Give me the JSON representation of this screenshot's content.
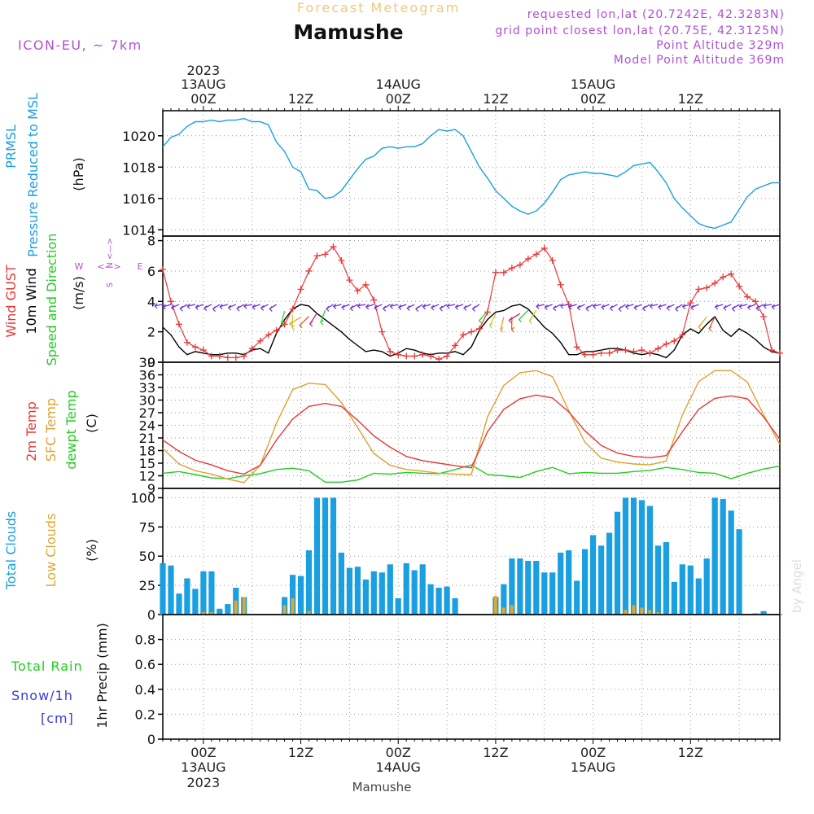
{
  "header": {
    "title": "Forecast Meteogram",
    "place": "Mamushe",
    "model": "ICON-EU,  ~ 7km",
    "requested": "requested lon,lat (20.7242E, 42.3283N)",
    "gridpoint": "grid point closest lon,lat (20.75E, 42.3125N)",
    "point_alt": "Point Altitude 329m",
    "model_alt": "Model Point Altitude 369m",
    "footer_place": "Mamushe",
    "watermark": "by Angel"
  },
  "time_axis": {
    "top_labels": [
      {
        "line1": "2023",
        "line2": "13AUG",
        "line3": "00Z",
        "hour": 0
      },
      {
        "line1": "",
        "line2": "",
        "line3": "12Z",
        "hour": 12
      },
      {
        "line1": "",
        "line2": "14AUG",
        "line3": "00Z",
        "hour": 24
      },
      {
        "line1": "",
        "line2": "",
        "line3": "12Z",
        "hour": 36
      },
      {
        "line1": "",
        "line2": "15AUG",
        "line3": "00Z",
        "hour": 48
      },
      {
        "line1": "",
        "line2": "",
        "line3": "12Z",
        "hour": 60
      }
    ],
    "bottom_labels": [
      {
        "line1": "00Z",
        "line2": "13AUG",
        "line3": "2023",
        "hour": 0
      },
      {
        "line1": "12Z",
        "line2": "",
        "line3": "",
        "hour": 12
      },
      {
        "line1": "00Z",
        "line2": "14AUG",
        "line3": "",
        "hour": 24
      },
      {
        "line1": "12Z",
        "line2": "",
        "line3": "",
        "hour": 36
      },
      {
        "line1": "00Z",
        "line2": "15AUG",
        "line3": "",
        "hour": 48
      },
      {
        "line1": "12Z",
        "line2": "",
        "line3": "",
        "hour": 60
      }
    ],
    "start_hour": -5,
    "end_hour": 71
  },
  "colors": {
    "pressure": "#1a9fe0",
    "gust": "#e83838",
    "wind": "#000000",
    "temp": "#e83838",
    "sfc": "#e0a030",
    "dewpt": "#22cc22",
    "clouds_total": "#1a9fe0",
    "clouds_low": "#e0a830",
    "rain": "#22cc22",
    "snow": "#3a3ae0",
    "meta": "#b050d0",
    "title": "#f0c880"
  },
  "chart_data": [
    {
      "type": "line",
      "name": "pressure",
      "ylabel_lines": [
        "PRMSL",
        "Pressure Reduced to MSL"
      ],
      "unit": "(hPa)",
      "ylim": [
        1013.6,
        1021.6
      ],
      "yticks": [
        1014,
        1016,
        1018,
        1020
      ],
      "x": [
        -5,
        -4,
        -3,
        -2,
        -1,
        0,
        1,
        2,
        3,
        4,
        5,
        6,
        7,
        8,
        9,
        10,
        11,
        12,
        13,
        14,
        15,
        16,
        17,
        18,
        19,
        20,
        21,
        22,
        23,
        24,
        25,
        26,
        27,
        28,
        29,
        30,
        31,
        32,
        33,
        34,
        35,
        36,
        37,
        38,
        39,
        40,
        41,
        42,
        43,
        44,
        45,
        46,
        47,
        48,
        49,
        50,
        51,
        52,
        53,
        54,
        55,
        56,
        57,
        58,
        59,
        60,
        61,
        62,
        63,
        64,
        65,
        66,
        67,
        68,
        69,
        70,
        71
      ],
      "series": [
        {
          "name": "PRMSL",
          "values": [
            1019.3,
            1019.9,
            1020.1,
            1020.6,
            1020.9,
            1020.9,
            1021.0,
            1020.9,
            1021.0,
            1021.0,
            1021.1,
            1020.9,
            1020.9,
            1020.7,
            1019.6,
            1019.0,
            1018.0,
            1017.7,
            1016.6,
            1016.5,
            1016.0,
            1016.1,
            1016.5,
            1017.2,
            1017.9,
            1018.5,
            1018.7,
            1019.2,
            1019.3,
            1019.2,
            1019.3,
            1019.3,
            1019.5,
            1020.0,
            1020.4,
            1020.3,
            1020.4,
            1020.0,
            1019.0,
            1018.0,
            1017.3,
            1016.5,
            1016.0,
            1015.5,
            1015.2,
            1015.0,
            1015.2,
            1015.7,
            1016.4,
            1017.2,
            1017.5,
            1017.6,
            1017.7,
            1017.6,
            1017.6,
            1017.5,
            1017.4,
            1017.7,
            1018.1,
            1018.2,
            1018.3,
            1017.7,
            1017.0,
            1016.0,
            1015.4,
            1014.9,
            1014.4,
            1014.2,
            1014.1,
            1014.3,
            1014.5,
            1015.3,
            1016.1,
            1016.6,
            1016.8,
            1017.0,
            1017.0
          ]
        }
      ]
    },
    {
      "type": "line",
      "name": "wind",
      "ylabel_lines": [
        "Wind GUST",
        "10m Wind",
        "Speed and Direction"
      ],
      "unit": "(m/s)",
      "compass": {
        "n": "N",
        "s": "S",
        "w": "W",
        "e": "E"
      },
      "ylim": [
        0,
        8.3
      ],
      "yticks": [
        0,
        2,
        4,
        6,
        8
      ],
      "x": [
        -5,
        -4,
        -3,
        -2,
        -1,
        0,
        1,
        2,
        3,
        4,
        5,
        6,
        7,
        8,
        9,
        10,
        11,
        12,
        13,
        14,
        15,
        16,
        17,
        18,
        19,
        20,
        21,
        22,
        23,
        24,
        25,
        26,
        27,
        28,
        29,
        30,
        31,
        32,
        33,
        34,
        35,
        36,
        37,
        38,
        39,
        40,
        41,
        42,
        43,
        44,
        45,
        46,
        47,
        48,
        49,
        50,
        51,
        52,
        53,
        54,
        55,
        56,
        57,
        58,
        59,
        60,
        61,
        62,
        63,
        64,
        65,
        66,
        67,
        68,
        69,
        70,
        71
      ],
      "series": [
        {
          "name": "Wind GUST",
          "values": [
            6.1,
            4.0,
            2.5,
            1.3,
            1.0,
            0.8,
            0.4,
            0.4,
            0.3,
            0.3,
            0.4,
            0.9,
            1.4,
            1.8,
            2.1,
            2.5,
            3.5,
            4.8,
            6.0,
            7.0,
            7.1,
            7.6,
            6.7,
            5.4,
            4.7,
            5.1,
            4.1,
            2.0,
            0.7,
            0.5,
            0.4,
            0.4,
            0.5,
            0.4,
            0.2,
            0.4,
            1.1,
            1.8,
            2.0,
            2.2,
            3.3,
            5.9,
            5.9,
            6.2,
            6.4,
            6.8,
            7.1,
            7.5,
            6.7,
            5.1,
            3.8,
            1.0,
            0.5,
            0.5,
            0.6,
            0.6,
            0.8,
            0.8,
            0.7,
            0.8,
            0.6,
            0.9,
            1.2,
            1.4,
            1.8,
            3.9,
            4.8,
            4.9,
            5.2,
            5.6,
            5.8,
            5.0,
            4.3,
            4.0,
            3.0,
            0.8,
            0.6
          ]
        },
        {
          "name": "10m Wind",
          "values": [
            2.3,
            1.8,
            1.0,
            0.5,
            0.7,
            0.6,
            0.5,
            0.5,
            0.6,
            0.6,
            0.5,
            0.8,
            0.9,
            0.6,
            1.9,
            2.8,
            3.5,
            3.8,
            3.7,
            3.2,
            2.8,
            2.4,
            2.0,
            1.5,
            1.1,
            0.7,
            0.8,
            0.7,
            0.4,
            0.6,
            0.9,
            0.8,
            0.6,
            0.5,
            0.6,
            0.6,
            0.7,
            0.5,
            1.0,
            2.1,
            2.8,
            3.3,
            3.4,
            3.7,
            3.8,
            3.5,
            2.9,
            2.3,
            1.9,
            1.3,
            0.5,
            0.5,
            0.7,
            0.7,
            0.8,
            0.9,
            0.9,
            0.8,
            0.6,
            0.5,
            0.6,
            0.5,
            0.3,
            0.8,
            1.8,
            2.2,
            1.9,
            2.5,
            3.0,
            2.1,
            1.7,
            2.2,
            1.9,
            1.5,
            1.0,
            0.7,
            0.6
          ]
        }
      ]
    },
    {
      "type": "line",
      "name": "temperature",
      "ylabel_lines": [
        "2m Temp",
        "SFC Temp",
        "dewpt Temp"
      ],
      "unit": "(C)",
      "ylim": [
        9,
        39
      ],
      "yticks": [
        9,
        12,
        15,
        18,
        21,
        24,
        27,
        30,
        33,
        36,
        39
      ],
      "x": [
        -5,
        -3,
        -1,
        1,
        3,
        5,
        7,
        9,
        11,
        13,
        15,
        17,
        19,
        21,
        23,
        25,
        27,
        29,
        31,
        33,
        35,
        37,
        39,
        41,
        43,
        45,
        47,
        49,
        51,
        53,
        55,
        57,
        59,
        61,
        63,
        65,
        67,
        69,
        71
      ],
      "series": [
        {
          "name": "2m Temp",
          "values": [
            20.5,
            17.8,
            15.7,
            14.6,
            13.2,
            12.4,
            14.5,
            20.5,
            25.5,
            28.5,
            29.2,
            28.5,
            25.2,
            21.5,
            18.8,
            16.6,
            15.6,
            15.0,
            14.4,
            13.9,
            22.5,
            27.8,
            30.3,
            31.2,
            30.5,
            27.2,
            22.7,
            19.2,
            17.4,
            16.6,
            16.3,
            16.8,
            22.5,
            27.8,
            30.4,
            31.0,
            30.3,
            26.0,
            20.7
          ]
        },
        {
          "name": "SFC Temp",
          "values": [
            18.5,
            14.8,
            13.2,
            12.4,
            11.2,
            10.4,
            14.5,
            24.5,
            32.5,
            34.0,
            33.7,
            29.4,
            23.5,
            17.3,
            14.5,
            13.5,
            13.1,
            12.6,
            12.4,
            12.3,
            26.0,
            33.5,
            36.5,
            37.0,
            35.6,
            27.5,
            20.0,
            16.2,
            15.3,
            14.8,
            14.6,
            15.5,
            26.5,
            34.4,
            37.0,
            37.0,
            34.3,
            26.5,
            19.5
          ]
        },
        {
          "name": "dewpt Temp",
          "values": [
            12.6,
            13.0,
            12.3,
            11.5,
            11.3,
            12.0,
            12.5,
            13.5,
            13.8,
            13.2,
            10.5,
            10.5,
            11.0,
            12.6,
            12.4,
            12.8,
            12.6,
            12.5,
            13.5,
            14.6,
            12.3,
            12.0,
            11.6,
            13.0,
            14.0,
            12.5,
            12.8,
            12.6,
            12.6,
            13.0,
            13.3,
            14.0,
            13.5,
            12.8,
            12.6,
            11.3,
            12.6,
            13.6,
            14.3
          ]
        }
      ]
    },
    {
      "type": "bar",
      "name": "clouds",
      "ylabel_lines": [
        "Total Clouds",
        "Low Clouds"
      ],
      "unit": "(%)",
      "ylim": [
        0,
        108
      ],
      "yticks": [
        0,
        25,
        50,
        75,
        100
      ],
      "x": [
        -5,
        -4,
        -3,
        -2,
        -1,
        0,
        1,
        2,
        3,
        4,
        5,
        6,
        7,
        8,
        9,
        10,
        11,
        12,
        13,
        14,
        15,
        16,
        17,
        18,
        19,
        20,
        21,
        22,
        23,
        24,
        25,
        26,
        27,
        28,
        29,
        30,
        31,
        32,
        33,
        34,
        35,
        36,
        37,
        38,
        39,
        40,
        41,
        42,
        43,
        44,
        45,
        46,
        47,
        48,
        49,
        50,
        51,
        52,
        53,
        54,
        55,
        56,
        57,
        58,
        59,
        60,
        61,
        62,
        63,
        64,
        65,
        66,
        67,
        68,
        69,
        70,
        71
      ],
      "series": [
        {
          "name": "Total Clouds",
          "values": [
            44,
            42,
            18,
            31,
            22,
            37,
            37,
            5,
            9,
            23,
            15,
            0,
            0,
            0,
            0,
            15,
            34,
            33,
            55,
            100,
            100,
            100,
            53,
            40,
            41,
            30,
            37,
            36,
            43,
            14,
            44,
            38,
            43,
            26,
            23,
            24,
            14,
            0,
            0,
            0,
            0,
            15,
            26,
            48,
            48,
            46,
            46,
            36,
            36,
            53,
            55,
            29,
            56,
            68,
            59,
            70,
            88,
            100,
            100,
            98,
            93,
            59,
            62,
            28,
            43,
            42,
            31,
            48,
            100,
            99,
            89,
            73,
            0,
            1,
            3,
            0,
            0
          ]
        },
        {
          "name": "Low Clouds",
          "values": [
            0,
            0,
            0,
            0,
            0,
            2,
            2,
            0,
            0,
            12,
            15,
            0,
            0,
            0,
            0,
            8,
            14,
            0,
            3,
            0,
            0,
            0,
            0,
            0,
            0,
            0,
            0,
            0,
            0,
            0,
            0,
            0,
            0,
            0,
            0,
            0,
            0,
            0,
            0,
            0,
            0,
            16,
            6,
            8,
            0,
            0,
            0,
            0,
            0,
            0,
            0,
            0,
            0,
            0,
            0,
            0,
            0,
            4,
            8,
            6,
            4,
            2,
            0,
            0,
            0,
            0,
            0,
            0,
            0,
            0,
            0,
            0,
            0,
            0,
            0,
            0,
            0
          ]
        }
      ]
    },
    {
      "type": "bar",
      "name": "precipitation",
      "ylabel_lines": [
        "Total Rain",
        "Snow/1h",
        "[cm]"
      ],
      "unit": "1hr Precip (mm)",
      "ylim": [
        0,
        1.0
      ],
      "yticks": [
        0,
        0.2,
        0.4,
        0.6,
        0.8
      ],
      "ytick_labels": [
        "0",
        "0.2",
        "0.4",
        "0.6",
        "0.8"
      ],
      "series": [
        {
          "name": "Total Rain",
          "values": []
        },
        {
          "name": "Snow",
          "values": []
        }
      ]
    }
  ]
}
